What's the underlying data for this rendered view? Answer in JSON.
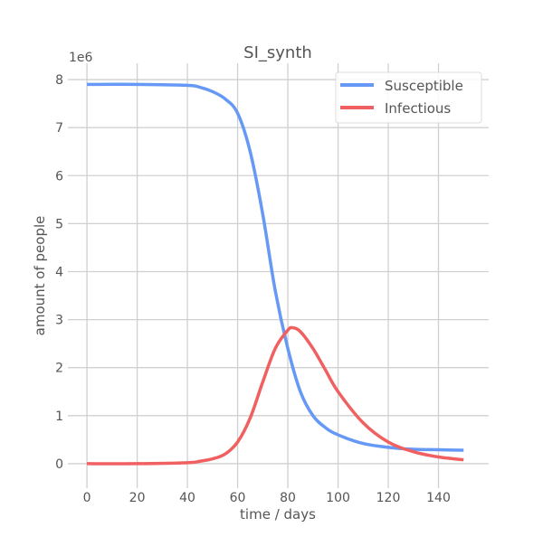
{
  "chart_data": {
    "type": "line",
    "title": "SI_synth",
    "xlabel": "time / days",
    "ylabel": "amount of people",
    "y_scale_label": "1e6",
    "xlim": [
      -7.6,
      160
    ],
    "ylim": [
      -0.51,
      8.34
    ],
    "xticks": [
      0,
      20,
      40,
      60,
      80,
      100,
      120,
      140
    ],
    "yticks": [
      0,
      1,
      2,
      3,
      4,
      5,
      6,
      7,
      8
    ],
    "grid": true,
    "legend_position": "top-right",
    "series": [
      {
        "name": "Susceptible",
        "color": "#6699f5",
        "x": [
          0,
          20,
          40,
          45,
          50,
          55,
          60,
          65,
          70,
          75,
          80,
          85,
          90,
          95,
          100,
          110,
          120,
          130,
          140,
          150
        ],
        "y": [
          7.9,
          7.9,
          7.88,
          7.84,
          7.75,
          7.6,
          7.3,
          6.5,
          5.2,
          3.6,
          2.4,
          1.5,
          1.0,
          0.75,
          0.6,
          0.42,
          0.34,
          0.3,
          0.29,
          0.28
        ]
      },
      {
        "name": "Infectious",
        "color": "#f06060",
        "x": [
          0,
          20,
          40,
          45,
          50,
          55,
          60,
          65,
          70,
          75,
          80,
          82,
          85,
          90,
          95,
          100,
          110,
          120,
          130,
          140,
          150
        ],
        "y": [
          0,
          0,
          0.02,
          0.05,
          0.1,
          0.2,
          0.45,
          0.95,
          1.7,
          2.4,
          2.78,
          2.83,
          2.75,
          2.4,
          1.95,
          1.5,
          0.85,
          0.45,
          0.25,
          0.14,
          0.08
        ]
      }
    ]
  }
}
